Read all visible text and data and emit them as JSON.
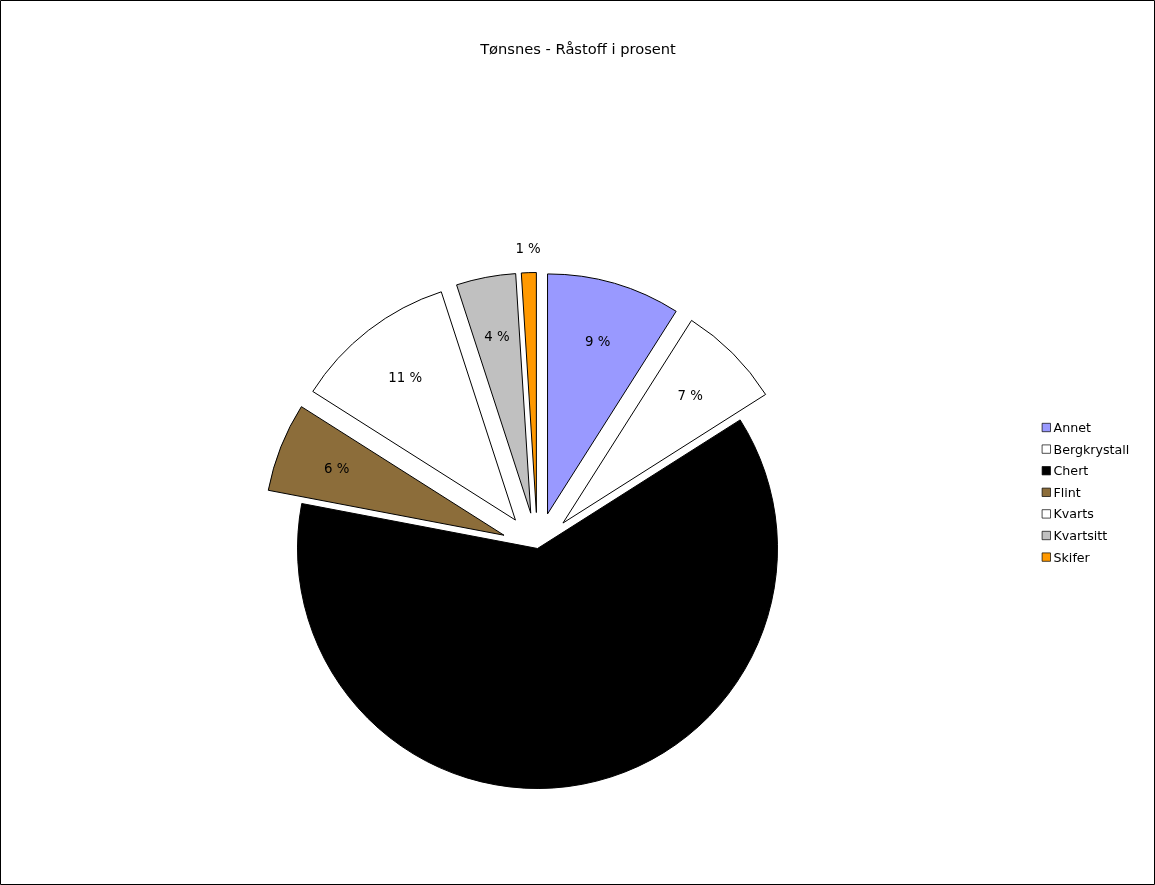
{
  "chart_data": {
    "type": "pie",
    "title": "Tønsnes - Råstoff i prosent",
    "categories": [
      "Annet",
      "Bergkrystall",
      "Chert",
      "Flint",
      "Kvarts",
      "Kvartsitt",
      "Skifer"
    ],
    "values": [
      9,
      7,
      62,
      6,
      11,
      4,
      1
    ],
    "value_labels": [
      "9 %",
      "7 %",
      null,
      "6 %",
      "11 %",
      "4 %",
      "1 %"
    ],
    "colors": [
      "#9999ff",
      "#ffffff",
      "#000000",
      "#8c6d3a",
      "#ffffff",
      "#c0c0c0",
      "#ff9900"
    ],
    "legend": "right"
  }
}
